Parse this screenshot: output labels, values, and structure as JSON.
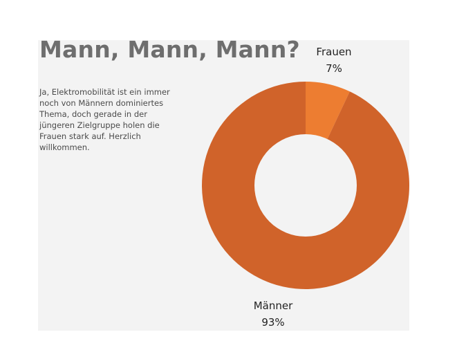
{
  "headline": "Mann, Mann, Mann?",
  "body_text": "Ja, Elektromobilität ist ein immer noch von Männern dominiertes Thema, doch gerade in der jüngeren Zielgruppe holen die Frauen stark auf. Herzlich willkommen.",
  "chart_data": {
    "type": "pie",
    "donut": true,
    "title": "",
    "slices": [
      {
        "label": "Frauen",
        "value": 7,
        "value_label": "7%",
        "color": "#ed7d31"
      },
      {
        "label": "Männer",
        "value": 93,
        "value_label": "93%",
        "color": "#d0632a"
      }
    ],
    "legend": "none"
  }
}
